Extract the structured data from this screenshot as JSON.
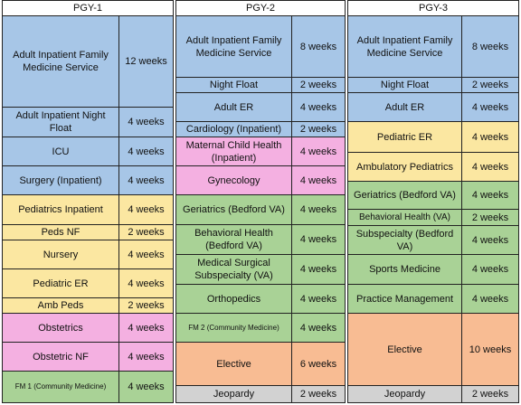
{
  "years": [
    {
      "header": "PGY-1",
      "rows": [
        {
          "rotation": "Adult Inpatient Family Medicine Service",
          "duration": "12 weeks",
          "color": "blue"
        },
        {
          "rotation": "Adult Inpatient Night Float",
          "duration": "4 weeks",
          "color": "blue"
        },
        {
          "rotation": "ICU",
          "duration": "4 weeks",
          "color": "blue"
        },
        {
          "rotation": "Surgery (Inpatient)",
          "duration": "4 weeks",
          "color": "blue"
        },
        {
          "rotation": "Pediatrics Inpatient",
          "duration": "4 weeks",
          "color": "yellow"
        },
        {
          "rotation": "Peds NF",
          "duration": "2 weeks",
          "color": "yellow"
        },
        {
          "rotation": "Nursery",
          "duration": "4 weeks",
          "color": "yellow"
        },
        {
          "rotation": "Pediatric ER",
          "duration": "4 weeks",
          "color": "yellow"
        },
        {
          "rotation": "Amb Peds",
          "duration": "2 weeks",
          "color": "yellow"
        },
        {
          "rotation": "Obstetrics",
          "duration": "4 weeks",
          "color": "pink"
        },
        {
          "rotation": "Obstetric NF",
          "duration": "4 weeks",
          "color": "pink"
        },
        {
          "rotation": "FM 1 (Community Medicine)",
          "duration": "4 weeks",
          "color": "green"
        }
      ]
    },
    {
      "header": "PGY-2",
      "rows": [
        {
          "rotation": "Adult Inpatient Family Medicine Service",
          "duration": "8 weeks",
          "color": "blue"
        },
        {
          "rotation": "Night Float",
          "duration": "2 weeks",
          "color": "blue"
        },
        {
          "rotation": "Adult ER",
          "duration": "4 weeks",
          "color": "blue"
        },
        {
          "rotation": "Cardiology (Inpatient)",
          "duration": "2 weeks",
          "color": "blue"
        },
        {
          "rotation": "Maternal Child Health (Inpatient)",
          "duration": "4 weeks",
          "color": "pink"
        },
        {
          "rotation": "Gynecology",
          "duration": "4 weeks",
          "color": "pink"
        },
        {
          "rotation": "Geriatrics (Bedford VA)",
          "duration": "4 weeks",
          "color": "green"
        },
        {
          "rotation": "Behavioral Health (Bedford VA)",
          "duration": "4 weeks",
          "color": "green"
        },
        {
          "rotation": "Medical Surgical Subspecialty (VA)",
          "duration": "4 weeks",
          "color": "green"
        },
        {
          "rotation": "Orthopedics",
          "duration": "4 weeks",
          "color": "green"
        },
        {
          "rotation": "FM 2 (Community Medicine)",
          "duration": "4 weeks",
          "color": "green"
        },
        {
          "rotation": "Elective",
          "duration": "6 weeks",
          "color": "orange"
        },
        {
          "rotation": "Jeopardy",
          "duration": "2 weeks",
          "color": "gray"
        }
      ]
    },
    {
      "header": "PGY-3",
      "rows": [
        {
          "rotation": "Adult Inpatient Family Medicine Service",
          "duration": "8 weeks",
          "color": "blue"
        },
        {
          "rotation": "Night Float",
          "duration": "2 weeks",
          "color": "blue"
        },
        {
          "rotation": "Adult ER",
          "duration": "4 weeks",
          "color": "blue"
        },
        {
          "rotation": "Pediatric ER",
          "duration": "4 weeks",
          "color": "yellow"
        },
        {
          "rotation": "Ambulatory Pediatrics",
          "duration": "4 weeks",
          "color": "yellow"
        },
        {
          "rotation": "Geriatrics (Bedford VA)",
          "duration": "4 weeks",
          "color": "green"
        },
        {
          "rotation": "Behavioral Health (VA)",
          "duration": "2 weeks",
          "color": "green"
        },
        {
          "rotation": "Subspecialty (Bedford VA)",
          "duration": "4 weeks",
          "color": "green"
        },
        {
          "rotation": "Sports Medicine",
          "duration": "4 weeks",
          "color": "green"
        },
        {
          "rotation": "Practice Management",
          "duration": "4 weeks",
          "color": "green"
        },
        {
          "rotation": "Elective",
          "duration": "10 weeks",
          "color": "orange"
        },
        {
          "rotation": "Jeopardy",
          "duration": "2 weeks",
          "color": "gray"
        }
      ]
    }
  ]
}
